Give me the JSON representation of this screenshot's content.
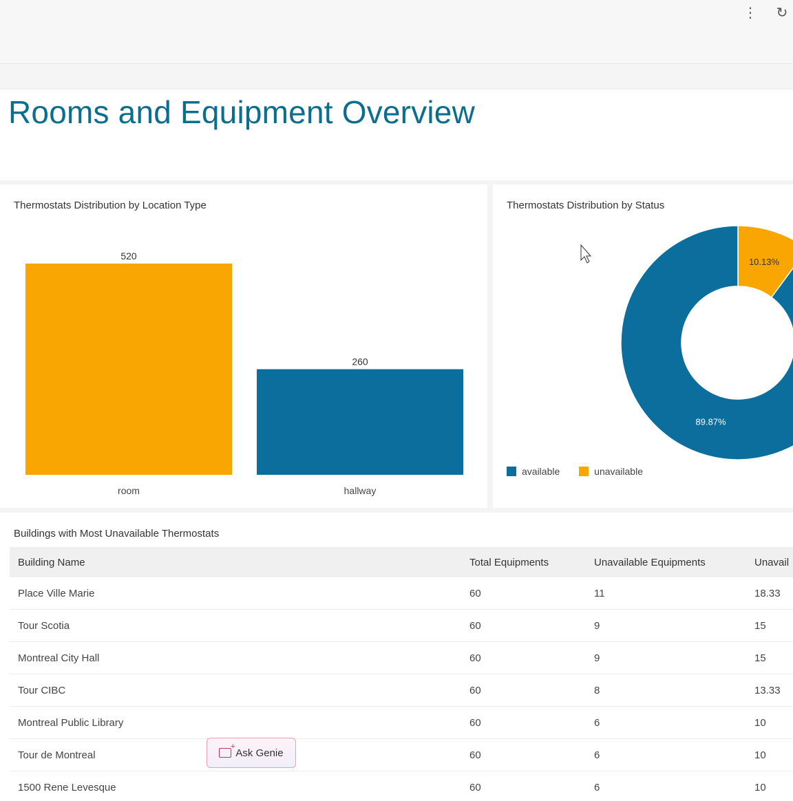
{
  "header": {
    "kebab_icon": "more-vertical-icon",
    "refresh_icon": "refresh-icon"
  },
  "page": {
    "title": "Rooms and Equipment Overview"
  },
  "bar_card": {
    "title": "Thermostats Distribution by Location Type"
  },
  "pie_card": {
    "title": "Thermostats Distribution by Status",
    "legend": [
      {
        "label": "available",
        "color": "#0b6e9c"
      },
      {
        "label": "unavailable",
        "color": "#f9a602"
      }
    ]
  },
  "chart_data": [
    {
      "type": "bar",
      "title": "Thermostats Distribution by Location Type",
      "categories": [
        "room",
        "hallway"
      ],
      "values": [
        520,
        260
      ],
      "data_labels": [
        "520",
        "260"
      ],
      "colors": [
        "#f9a602",
        "#0b6e9c"
      ],
      "ylim": [
        0,
        520
      ]
    },
    {
      "type": "pie",
      "title": "Thermostats Distribution by Status",
      "donut": true,
      "labels": [
        "available",
        "unavailable"
      ],
      "values": [
        89.87,
        10.13
      ],
      "data_labels": [
        "89.87%",
        "10.13%"
      ],
      "colors": [
        "#0b6e9c",
        "#f9a602"
      ],
      "legend_position": "bottom-left"
    }
  ],
  "table_card": {
    "title": "Buildings with Most Unavailable Thermostats",
    "columns": [
      "Building Name",
      "Total Equipments",
      "Unavailable Equipments",
      "Unavail"
    ],
    "rows": [
      {
        "name": "Place Ville Marie",
        "total": "60",
        "unavailable": "11",
        "pct": "18.33",
        "tone": "red"
      },
      {
        "name": "Tour Scotia",
        "total": "60",
        "unavailable": "9",
        "pct": "15",
        "tone": "red"
      },
      {
        "name": "Montreal City Hall",
        "total": "60",
        "unavailable": "9",
        "pct": "15",
        "tone": "red"
      },
      {
        "name": "Tour CIBC",
        "total": "60",
        "unavailable": "8",
        "pct": "13.33",
        "tone": "amber"
      },
      {
        "name": "Montreal Public Library",
        "total": "60",
        "unavailable": "6",
        "pct": "10",
        "tone": "amber"
      },
      {
        "name": "Tour de Montreal",
        "total": "60",
        "unavailable": "6",
        "pct": "10",
        "tone": "amber"
      },
      {
        "name": "1500 Rene Levesque",
        "total": "60",
        "unavailable": "6",
        "pct": "10",
        "tone": "amber"
      }
    ]
  },
  "ask_genie": {
    "label": "Ask Genie",
    "icon": "genie-sparkle-icon"
  }
}
